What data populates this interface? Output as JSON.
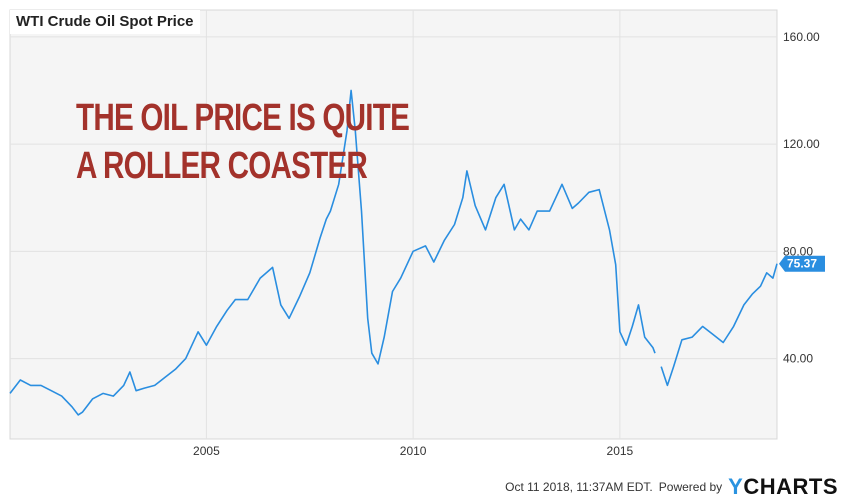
{
  "chart_data": {
    "type": "line",
    "title": "WTI Crude Oil Spot Price",
    "annotation": [
      "THE OIL PRICE IS QUITE",
      "A ROLLER COASTER"
    ],
    "xlabel": "",
    "ylabel": "",
    "xlim": [
      2000.25,
      2018.8
    ],
    "ylim": [
      10,
      170
    ],
    "x_ticks": [
      2005,
      2010,
      2015
    ],
    "x_tick_labels": [
      "2005",
      "2010",
      "2015"
    ],
    "y_ticks": [
      40,
      80,
      120,
      160
    ],
    "y_tick_labels": [
      "40.00",
      "80.00",
      "120.00",
      "160.00"
    ],
    "last_value_label": "75.37",
    "series": [
      {
        "x": [
          2000.25,
          2000.5,
          2000.75,
          2001.0,
          2001.25,
          2001.5,
          2001.75,
          2001.9,
          2002.0,
          2002.25,
          2002.5,
          2002.75,
          2003.0,
          2003.15,
          2003.3,
          2003.5,
          2003.75,
          2004.0,
          2004.25,
          2004.5,
          2004.8,
          2005.0,
          2005.25,
          2005.5,
          2005.7,
          2006.0,
          2006.3,
          2006.6,
          2006.8,
          2007.0,
          2007.25,
          2007.5,
          2007.75,
          2007.9,
          2008.0,
          2008.2,
          2008.4,
          2008.5,
          2008.6,
          2008.75,
          2008.9,
          2009.0,
          2009.15,
          2009.3,
          2009.5,
          2009.7,
          2010.0,
          2010.3,
          2010.5,
          2010.75,
          2011.0,
          2011.2,
          2011.3,
          2011.5,
          2011.75,
          2012.0,
          2012.2,
          2012.45,
          2012.6,
          2012.8,
          2013.0,
          2013.3,
          2013.6,
          2013.85,
          2014.0,
          2014.25,
          2014.5,
          2014.75,
          2014.9,
          2015.0,
          2015.15,
          2015.3,
          2015.45,
          2015.6,
          2015.8,
          2015.85
        ],
        "y": [
          27,
          32,
          30,
          30,
          28,
          26,
          22,
          19,
          20,
          25,
          27,
          26,
          30,
          35,
          28,
          29,
          30,
          33,
          36,
          40,
          50,
          45,
          52,
          58,
          62,
          62,
          70,
          74,
          60,
          55,
          63,
          72,
          85,
          92,
          95,
          105,
          125,
          140,
          125,
          95,
          55,
          42,
          38,
          48,
          65,
          70,
          80,
          82,
          76,
          84,
          90,
          100,
          110,
          97,
          88,
          100,
          105,
          88,
          92,
          88,
          95,
          95,
          105,
          96,
          98,
          102,
          103,
          88,
          75,
          50,
          45,
          52,
          60,
          48,
          44,
          42
        ],
        "color": "#2a8ee0"
      },
      {
        "x": [
          2016.0,
          2016.15,
          2016.3,
          2016.5,
          2016.75,
          2017.0,
          2017.25,
          2017.5,
          2017.75,
          2018.0,
          2018.2,
          2018.4,
          2018.55,
          2018.7,
          2018.8
        ],
        "y": [
          37,
          30,
          37,
          47,
          48,
          52,
          49,
          46,
          52,
          60,
          64,
          67,
          72,
          70,
          75.37
        ],
        "color": "#2a8ee0"
      }
    ]
  },
  "footer": {
    "timestamp": "Oct 11 2018, 11:37AM EDT.",
    "powered_by": "Powered by",
    "brand_y": "Y",
    "brand_rest": "CHARTS"
  }
}
